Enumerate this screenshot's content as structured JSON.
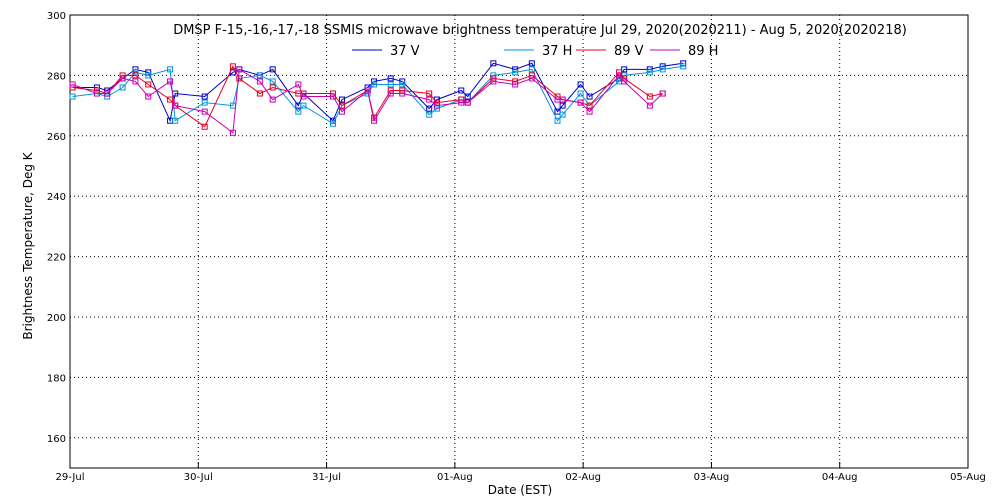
{
  "chart_data": {
    "type": "line",
    "title": "DMSP F-15,-16,-17,-18 SSMIS microwave brightness temperature Jul 29, 2020(2020211) - Aug  5, 2020(2020218)",
    "xlabel": "Date (EST)",
    "ylabel": "Brightness Temperature, Deg K",
    "ylim": [
      150,
      300
    ],
    "yticks": [
      160,
      180,
      200,
      220,
      240,
      260,
      280,
      300
    ],
    "xlim": [
      0,
      7
    ],
    "xticks": [
      0,
      1,
      2,
      3,
      4,
      5,
      6,
      7
    ],
    "xtick_labels": [
      "29-Jul",
      "30-Jul",
      "31-Jul",
      "01-Aug",
      "02-Aug",
      "03-Aug",
      "04-Aug",
      "05-Aug"
    ],
    "grid": true,
    "legend_position": "top-center",
    "marker": "square",
    "series": [
      {
        "name": "37 V",
        "color": "#0000c8",
        "x": [
          0.02,
          0.21,
          0.29,
          0.41,
          0.51,
          0.61,
          0.78,
          0.82,
          1.05,
          1.27,
          1.32,
          1.48,
          1.58,
          1.78,
          1.82,
          2.05,
          2.12,
          2.32,
          2.37,
          2.5,
          2.59,
          2.8,
          2.86,
          3.05,
          3.1,
          3.3,
          3.47,
          3.6,
          3.8,
          3.84,
          3.98,
          4.05,
          4.28,
          4.32,
          4.52,
          4.62,
          4.78
        ],
        "values": [
          276,
          276,
          275,
          279,
          282,
          281,
          265,
          274,
          273,
          281,
          282,
          280,
          282,
          270,
          274,
          265,
          272,
          276,
          278,
          279,
          278,
          269,
          272,
          275,
          273,
          284,
          282,
          284,
          268,
          270,
          277,
          273,
          279,
          282,
          282,
          283,
          284
        ]
      },
      {
        "name": "37 H",
        "color": "#0096dc",
        "x": [
          0.02,
          0.21,
          0.29,
          0.41,
          0.51,
          0.61,
          0.78,
          0.82,
          1.05,
          1.27,
          1.32,
          1.48,
          1.58,
          1.78,
          1.82,
          2.05,
          2.12,
          2.32,
          2.37,
          2.5,
          2.59,
          2.8,
          2.86,
          3.05,
          3.1,
          3.3,
          3.47,
          3.6,
          3.8,
          3.84,
          3.98,
          4.05,
          4.28,
          4.32,
          4.52,
          4.62,
          4.78
        ],
        "values": [
          273,
          274,
          273,
          276,
          281,
          280,
          282,
          265,
          271,
          270,
          279,
          280,
          278,
          268,
          270,
          264,
          270,
          274,
          277,
          277,
          277,
          267,
          269,
          272,
          271,
          280,
          281,
          282,
          265,
          267,
          274,
          270,
          278,
          280,
          281,
          282,
          283
        ]
      },
      {
        "name": "89 V",
        "color": "#e6001e",
        "x": [
          0.02,
          0.21,
          0.29,
          0.41,
          0.51,
          0.61,
          0.78,
          0.82,
          1.05,
          1.27,
          1.32,
          1.48,
          1.58,
          1.78,
          1.82,
          2.05,
          2.12,
          2.32,
          2.37,
          2.5,
          2.59,
          2.8,
          2.86,
          3.05,
          3.1,
          3.3,
          3.47,
          3.6,
          3.8,
          3.84,
          3.98,
          4.05,
          4.28,
          4.32,
          4.52,
          4.62
        ],
        "values": [
          276,
          275,
          274,
          280,
          280,
          277,
          272,
          270,
          263,
          283,
          279,
          274,
          276,
          274,
          274,
          274,
          270,
          275,
          266,
          275,
          275,
          274,
          271,
          272,
          271,
          279,
          278,
          280,
          273,
          272,
          271,
          270,
          281,
          279,
          273,
          274
        ]
      },
      {
        "name": "89 H",
        "color": "#c800b4",
        "x": [
          0.02,
          0.21,
          0.29,
          0.41,
          0.51,
          0.61,
          0.78,
          0.82,
          1.05,
          1.27,
          1.32,
          1.48,
          1.58,
          1.78,
          1.82,
          2.05,
          2.12,
          2.32,
          2.37,
          2.5,
          2.59,
          2.8,
          2.86,
          3.05,
          3.1,
          3.3,
          3.47,
          3.6,
          3.8,
          3.84,
          3.98,
          4.05,
          4.28,
          4.32,
          4.52,
          4.62
        ],
        "values": [
          277,
          274,
          274,
          279,
          278,
          273,
          278,
          270,
          268,
          261,
          282,
          278,
          272,
          277,
          273,
          273,
          268,
          275,
          265,
          274,
          274,
          272,
          270,
          271,
          271,
          278,
          277,
          279,
          272,
          272,
          271,
          268,
          280,
          278,
          270,
          274
        ]
      }
    ]
  }
}
